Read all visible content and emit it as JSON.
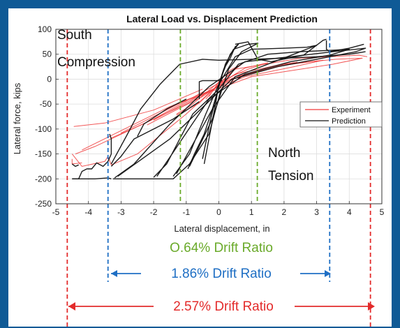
{
  "colors": {
    "background": "#0f5a96",
    "experiment": "#f03a3a",
    "prediction": "#111111",
    "green": "#6aaa2a",
    "blue": "#1f6fc4",
    "red": "#e32b2b"
  },
  "chart_data": {
    "type": "line",
    "title": "Lateral Load vs. Displacement Prediction",
    "xlabel": "Lateral displacement, in",
    "ylabel": "Lateral force, kips",
    "xlim": [
      -5,
      5
    ],
    "ylim": [
      -250,
      100
    ],
    "xticks": [
      -5,
      -4,
      -3,
      -2,
      -1,
      0,
      1,
      2,
      3,
      4,
      5
    ],
    "yticks": [
      100,
      50,
      0,
      -50,
      -100,
      -150,
      -200,
      -250
    ],
    "grid": true,
    "legend": {
      "position": "right",
      "entries": [
        "Experiment",
        "Prediction"
      ]
    },
    "annotations": {
      "south": [
        "South",
        "Compression"
      ],
      "north": [
        "North",
        "Tension"
      ]
    },
    "series": [
      {
        "name": "Experiment",
        "color": "#f03a3a",
        "loops": [
          [
            [
              -0.3,
              -35
            ],
            [
              0,
              -5
            ],
            [
              0.35,
              18
            ],
            [
              0.7,
              30
            ],
            [
              0.35,
              12
            ],
            [
              0,
              -10
            ],
            [
              -0.4,
              -40
            ]
          ],
          [
            [
              -1.3,
              -72
            ],
            [
              -0.6,
              -48
            ],
            [
              0,
              -10
            ],
            [
              0.8,
              22
            ],
            [
              1.5,
              33
            ],
            [
              0.9,
              20
            ],
            [
              0,
              -6
            ],
            [
              -0.9,
              -55
            ],
            [
              -1.3,
              -70
            ]
          ],
          [
            [
              -2.2,
              -92
            ],
            [
              -1.5,
              -68
            ],
            [
              -0.5,
              -35
            ],
            [
              0.5,
              10
            ],
            [
              1.8,
              28
            ],
            [
              2.4,
              34
            ],
            [
              1.6,
              22
            ],
            [
              0.6,
              5
            ],
            [
              -0.8,
              -40
            ],
            [
              -2.0,
              -82
            ]
          ],
          [
            [
              -3.3,
              -118
            ],
            [
              -2.5,
              -95
            ],
            [
              -1.0,
              -50
            ],
            [
              0.5,
              5
            ],
            [
              2.0,
              28
            ],
            [
              3.2,
              38
            ],
            [
              2.3,
              25
            ],
            [
              0.8,
              5
            ],
            [
              -1.0,
              -42
            ],
            [
              -3.0,
              -108
            ]
          ],
          [
            [
              -4.4,
              -150
            ],
            [
              -3.8,
              -135
            ],
            [
              -2.0,
              -80
            ],
            [
              0,
              -8
            ],
            [
              2.0,
              30
            ],
            [
              3.6,
              40
            ],
            [
              4.4,
              42
            ],
            [
              3.5,
              30
            ],
            [
              1.0,
              5
            ],
            [
              -1.5,
              -55
            ],
            [
              -4.2,
              -142
            ]
          ],
          [
            [
              -4.45,
              -95
            ],
            [
              -3.5,
              -88
            ],
            [
              -2.0,
              -62
            ],
            [
              -0.5,
              -20
            ]
          ],
          [
            [
              -4.5,
              -150
            ],
            [
              -4.2,
              -175
            ],
            [
              -3.5,
              -165
            ],
            [
              -3.4,
              -155
            ],
            [
              -3.3,
              -172
            ],
            [
              -2.5,
              -150
            ],
            [
              -1.0,
              -70
            ],
            [
              0.5,
              20
            ],
            [
              2.5,
              42
            ],
            [
              4.3,
              48
            ],
            [
              4.55,
              45
            ]
          ],
          [
            [
              -4.5,
              -160
            ],
            [
              -4.5,
              -170
            ],
            [
              -4.2,
              -168
            ]
          ]
        ]
      },
      {
        "name": "Prediction",
        "color": "#111111",
        "loops": [
          [
            [
              -0.45,
              -170
            ],
            [
              -0.1,
              -50
            ],
            [
              0,
              -10
            ],
            [
              0.15,
              20
            ],
            [
              0.35,
              42
            ],
            [
              0.5,
              65
            ],
            [
              0.6,
              70
            ],
            [
              0.35,
              50
            ],
            [
              0.05,
              0
            ],
            [
              -0.25,
              -80
            ],
            [
              -0.5,
              -160
            ]
          ],
          [
            [
              -0.95,
              -180
            ],
            [
              -0.75,
              -150
            ],
            [
              -0.45,
              -110
            ],
            [
              -0.2,
              -60
            ],
            [
              0,
              -15
            ],
            [
              0.2,
              30
            ],
            [
              0.45,
              60
            ],
            [
              0.9,
              70
            ],
            [
              1.2,
              72
            ],
            [
              0.7,
              55
            ],
            [
              0.3,
              20
            ],
            [
              -0.2,
              -80
            ],
            [
              -0.9,
              -175
            ]
          ],
          [
            [
              -1.4,
              -195
            ],
            [
              -0.9,
              -150
            ],
            [
              -0.4,
              -70
            ],
            [
              0,
              -10
            ],
            [
              0.5,
              45
            ],
            [
              1.0,
              60
            ],
            [
              2.0,
              62
            ],
            [
              2.7,
              64
            ],
            [
              3.0,
              68
            ],
            [
              2.3,
              50
            ],
            [
              1.5,
              30
            ],
            [
              0.5,
              5
            ],
            [
              -0.2,
              -60
            ],
            [
              -1.3,
              -190
            ]
          ],
          [
            [
              -2.0,
              -197
            ],
            [
              -1.6,
              -170
            ],
            [
              -0.8,
              -70
            ],
            [
              0,
              -20
            ],
            [
              0.6,
              30
            ],
            [
              1.5,
              50
            ],
            [
              2.5,
              55
            ],
            [
              3.5,
              58
            ],
            [
              4.0,
              60
            ],
            [
              3.4,
              48
            ],
            [
              2.2,
              35
            ],
            [
              0.8,
              10
            ],
            [
              -0.3,
              -40
            ],
            [
              -1.9,
              -195
            ]
          ],
          [
            [
              -3.2,
              -198
            ],
            [
              -2.6,
              -170
            ],
            [
              -1.5,
              -90
            ],
            [
              -0.3,
              -15
            ],
            [
              0.8,
              35
            ],
            [
              2.2,
              45
            ],
            [
              3.5,
              55
            ],
            [
              4.5,
              62
            ],
            [
              4.2,
              55
            ],
            [
              3.0,
              40
            ],
            [
              1.8,
              25
            ],
            [
              0.4,
              0
            ],
            [
              -1.5,
              -120
            ],
            [
              -3.1,
              -195
            ]
          ],
          [
            [
              -3.25,
              -200
            ],
            [
              -1.4,
              -200
            ],
            [
              -0.9,
              -170
            ],
            [
              -0.3,
              -110
            ],
            [
              0.05,
              -25
            ]
          ],
          [
            [
              -4.5,
              -200
            ],
            [
              -4.3,
              -200
            ],
            [
              -4.2,
              -185
            ],
            [
              -4.05,
              -180
            ],
            [
              -3.9,
              -180
            ],
            [
              -3.75,
              -168
            ],
            [
              -3.55,
              -175
            ],
            [
              -3.4,
              -165
            ],
            [
              -3.3,
              -150
            ],
            [
              -3.3,
              -120
            ],
            [
              -3.35,
              -110
            ]
          ],
          [
            [
              -4.5,
              -200
            ],
            [
              -3.8,
              -200
            ],
            [
              -3.4,
              -198
            ],
            [
              -3.3,
              -200
            ]
          ],
          [
            [
              -3.3,
              -175
            ],
            [
              -3.0,
              -155
            ],
            [
              -2.6,
              -120
            ],
            [
              -1.4,
              -80
            ],
            [
              -0.6,
              -45
            ]
          ],
          [
            [
              -3.3,
              -170
            ],
            [
              -2.8,
              -110
            ],
            [
              -2.4,
              -60
            ],
            [
              -1.8,
              -10
            ],
            [
              -1.2,
              30
            ],
            [
              -0.5,
              40
            ],
            [
              0,
              38
            ],
            [
              1.0,
              40
            ],
            [
              2.0,
              42
            ],
            [
              3.0,
              45
            ],
            [
              4.0,
              50
            ],
            [
              4.5,
              55
            ]
          ],
          [
            [
              -2.5,
              -115
            ],
            [
              -2.3,
              -90
            ],
            [
              -1.6,
              -60
            ],
            [
              -1.0,
              -40
            ]
          ],
          [
            [
              -0.6,
              -40
            ],
            [
              -0.6,
              -5
            ],
            [
              -0.5,
              -3
            ],
            [
              0.1,
              -3
            ]
          ],
          [
            [
              0.5,
              70
            ],
            [
              0.9,
              75
            ],
            [
              1.2,
              40
            ],
            [
              1.6,
              35
            ],
            [
              2.6,
              48
            ],
            [
              3.2,
              78
            ],
            [
              3.3,
              80
            ]
          ],
          [
            [
              3.3,
              78
            ],
            [
              3.3,
              60
            ],
            [
              3.4,
              55
            ],
            [
              4.0,
              62
            ],
            [
              4.45,
              70
            ]
          ],
          [
            [
              -4.5,
              -170
            ],
            [
              -4.4,
              -175
            ],
            [
              -4.3,
              -172
            ]
          ]
        ]
      }
    ],
    "reference_lines": [
      {
        "x": [
          -1.18,
          1.18
        ],
        "color": "#6aaa2a",
        "label": "O.64% Drift Ratio"
      },
      {
        "x": [
          -3.4,
          3.4
        ],
        "color": "#1f6fc4",
        "label": "1.86% Drift Ratio"
      },
      {
        "x": [
          -4.65,
          4.65
        ],
        "color": "#e32b2b",
        "label": "2.57% Drift Ratio"
      }
    ]
  }
}
